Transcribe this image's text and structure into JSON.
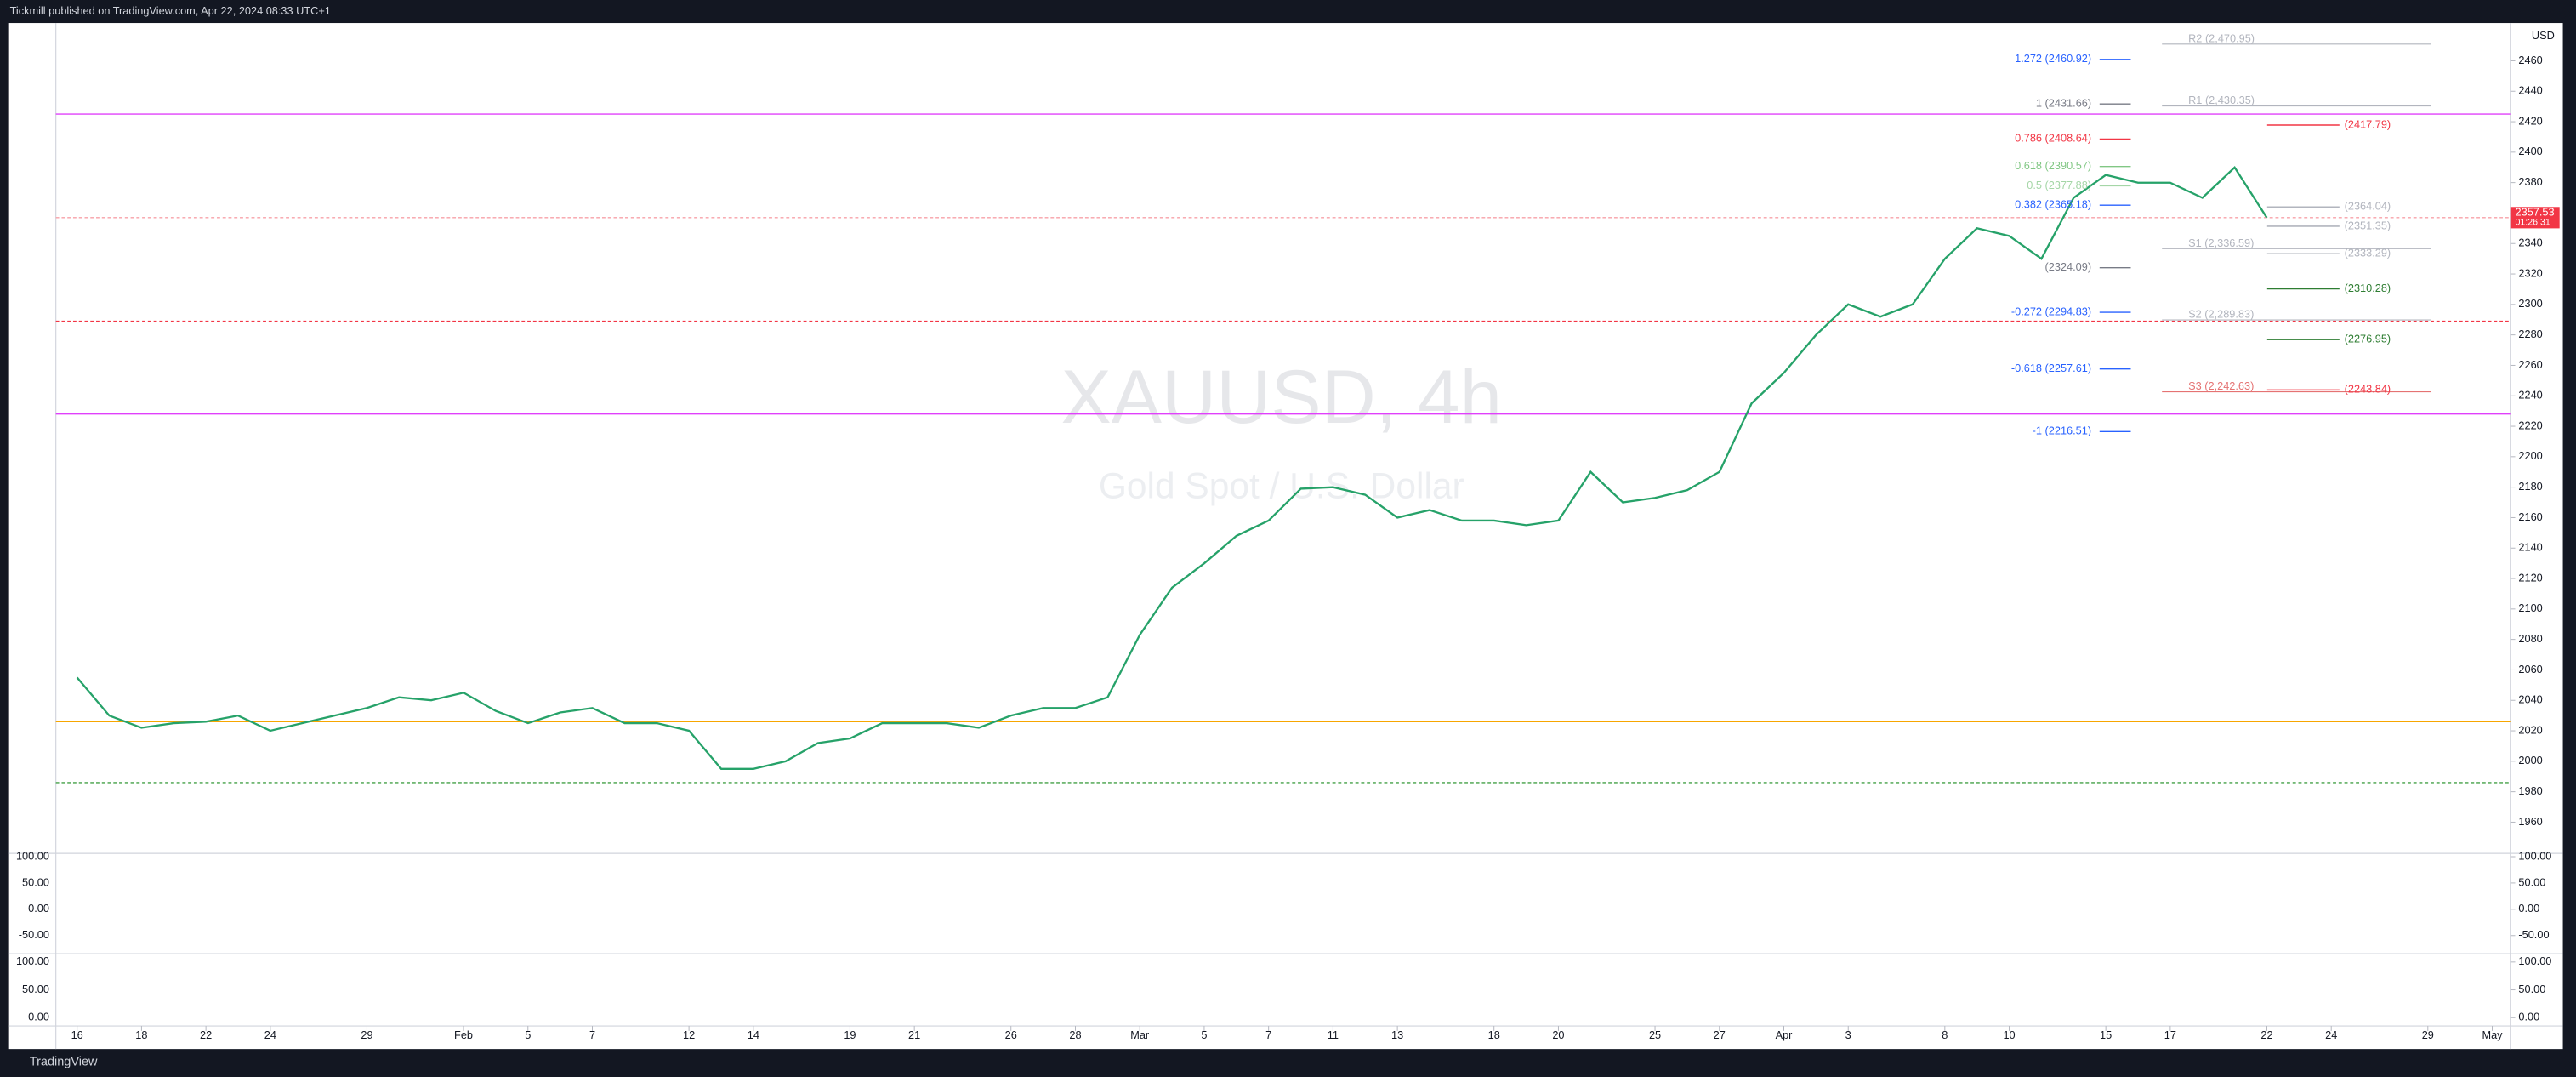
{
  "header": {
    "text": "Tickmill published on TradingView.com, Apr 22, 2024 08:33 UTC+1"
  },
  "footer": {
    "brand": "TradingView"
  },
  "chart_data": {
    "type": "line",
    "title": "XAUUSD, 4h",
    "subtitle": "Gold Spot / U.S. Dollar",
    "currency": "USD",
    "color": "#26a269",
    "x": [
      0,
      1,
      2,
      3,
      4,
      5,
      6,
      7,
      8,
      9,
      10,
      11,
      12,
      13,
      14,
      15,
      16,
      17,
      18,
      19,
      20,
      21,
      22,
      23,
      24,
      25,
      26,
      27,
      28,
      29,
      30,
      31,
      32,
      33,
      34,
      35,
      36,
      37,
      38,
      39,
      40,
      41,
      42,
      43,
      44,
      45,
      46,
      47,
      48,
      49,
      50,
      51,
      52,
      53,
      54,
      55,
      56,
      57,
      58,
      59,
      60,
      61,
      62,
      63,
      64,
      65,
      66,
      67,
      68
    ],
    "values": [
      2055,
      2030,
      2022,
      2025,
      2026,
      2030,
      2020,
      2025,
      2030,
      2035,
      2042,
      2040,
      2045,
      2033,
      2025,
      2032,
      2035,
      2025,
      2025,
      2020,
      1995,
      1995,
      2000,
      2012,
      2015,
      2025,
      2025,
      2025,
      2022,
      2030,
      2035,
      2035,
      2042,
      2083,
      2114,
      2130,
      2148,
      2158,
      2179,
      2180,
      2175,
      2160,
      2165,
      2158,
      2158,
      2155,
      2158,
      2190,
      2170,
      2173,
      2178,
      2190,
      2235,
      2255,
      2280,
      2300,
      2292,
      2300,
      2330,
      2350,
      2345,
      2330,
      2370,
      2385,
      2380,
      2380,
      2370,
      2390,
      2357
    ],
    "xlim": [
      -0.66,
      75.56
    ],
    "xticks": [
      {
        "value": 0,
        "label": "16"
      },
      {
        "value": 2,
        "label": "18"
      },
      {
        "value": 4,
        "label": "22"
      },
      {
        "value": 6,
        "label": "24"
      },
      {
        "value": 9,
        "label": "29"
      },
      {
        "value": 12,
        "label": "Feb"
      },
      {
        "value": 14,
        "label": "5"
      },
      {
        "value": 16,
        "label": "7"
      },
      {
        "value": 19,
        "label": "12"
      },
      {
        "value": 21,
        "label": "14"
      },
      {
        "value": 24,
        "label": "19"
      },
      {
        "value": 26,
        "label": "21"
      },
      {
        "value": 29,
        "label": "26"
      },
      {
        "value": 31,
        "label": "28"
      },
      {
        "value": 33,
        "label": "Mar"
      },
      {
        "value": 35,
        "label": "5"
      },
      {
        "value": 37,
        "label": "7"
      },
      {
        "value": 39,
        "label": "11"
      },
      {
        "value": 41,
        "label": "13"
      },
      {
        "value": 44,
        "label": "18"
      },
      {
        "value": 46,
        "label": "20"
      },
      {
        "value": 49,
        "label": "25"
      },
      {
        "value": 51,
        "label": "27"
      },
      {
        "value": 53,
        "label": "Apr"
      },
      {
        "value": 55,
        "label": "3"
      },
      {
        "value": 58,
        "label": "8"
      },
      {
        "value": 60,
        "label": "10"
      },
      {
        "value": 63,
        "label": "15"
      },
      {
        "value": 65,
        "label": "17"
      },
      {
        "value": 68,
        "label": "22"
      },
      {
        "value": 70,
        "label": "24"
      },
      {
        "value": 73,
        "label": "29"
      },
      {
        "value": 75,
        "label": "May"
      }
    ],
    "ylim": [
      1939.5,
      2484.8
    ],
    "yticks": [
      1960,
      1980,
      2000,
      2020,
      2040,
      2060,
      2080,
      2100,
      2120,
      2140,
      2160,
      2180,
      2200,
      2220,
      2240,
      2260,
      2280,
      2300,
      2320,
      2340,
      2360,
      2380,
      2400,
      2420,
      2440,
      2460
    ],
    "last_price": 2357.53,
    "countdown": "01:26:31",
    "levels": [
      {
        "value": 2026,
        "color": "#f7a600"
      },
      {
        "value": 2425,
        "color": "#e040fb"
      },
      {
        "value": 2228,
        "color": "#e040fb"
      },
      {
        "value": 2289,
        "color": "#f23645"
      },
      {
        "value": 2357,
        "color": "#f8a0a8"
      },
      {
        "value": 1986,
        "color": "#43a047"
      }
    ],
    "fib_levels": [
      {
        "value": 2460.92,
        "label": "1.272 (2460.92)",
        "color": "#2962ff"
      },
      {
        "value": 2431.66,
        "label": "1 (2431.66)",
        "color": "#787b86"
      },
      {
        "value": 2408.64,
        "label": "0.786 (2408.64)",
        "color": "#f23645"
      },
      {
        "value": 2390.57,
        "label": "0.618 (2390.57)",
        "color": "#81c784"
      },
      {
        "value": 2377.88,
        "label": "0.5 (2377.88)",
        "color": "#a5d6a7"
      },
      {
        "value": 2365.18,
        "label": "0.382 (2365.18)",
        "color": "#2962ff"
      },
      {
        "value": 2324.09,
        "label": "(2324.09)",
        "color": "#787b86"
      },
      {
        "value": 2294.83,
        "label": "-0.272 (2294.83)",
        "color": "#2962ff"
      },
      {
        "value": 2257.61,
        "label": "-0.618 (2257.61)",
        "color": "#2962ff"
      },
      {
        "value": 2216.51,
        "label": "-1 (2216.51)",
        "color": "#2962ff"
      }
    ],
    "pivot_levels": [
      {
        "value": 2470.95,
        "label": "R2 (2,470.95)",
        "color": "#b2b5be"
      },
      {
        "value": 2430.35,
        "label": "R1 (2,430.35)",
        "color": "#b2b5be"
      },
      {
        "value": 2336.59,
        "label": "S1 (2,336.59)",
        "color": "#b2b5be"
      },
      {
        "value": 2289.83,
        "label": "S2 (2,289.83)",
        "color": "#b2b5be"
      },
      {
        "value": 2242.63,
        "label": "S3 (2,242.63)",
        "color": "#e57373"
      }
    ],
    "side_levels": [
      {
        "value": 2417.79,
        "label": "(2417.79)",
        "color": "#f23645"
      },
      {
        "value": 2364.04,
        "label": "(2364.04)",
        "color": "#b2b5be"
      },
      {
        "value": 2351.35,
        "label": "(2351.35)",
        "color": "#b2b5be"
      },
      {
        "value": 2333.29,
        "label": "(2333.29)",
        "color": "#b2b5be"
      },
      {
        "value": 2310.28,
        "label": "(2310.28)",
        "color": "#2e7d32"
      },
      {
        "value": 2276.95,
        "label": "(2276.95)",
        "color": "#2e7d32"
      },
      {
        "value": 2243.84,
        "label": "(2243.84)",
        "color": "#f23645"
      }
    ]
  },
  "oscillator_panels": [
    {
      "ylim": [
        -84.4,
        106.25
      ],
      "yticks": [
        {
          "value": 100,
          "label": "100.00"
        },
        {
          "value": 50,
          "label": "50.00"
        },
        {
          "value": 0,
          "label": "0.00"
        },
        {
          "value": -50,
          "label": "-50.00"
        }
      ]
    },
    {
      "ylim": [
        -15,
        115
      ],
      "yticks": [
        {
          "value": 100,
          "label": "100.00"
        },
        {
          "value": 50,
          "label": "50.00"
        },
        {
          "value": 0,
          "label": "0.00"
        }
      ]
    }
  ]
}
